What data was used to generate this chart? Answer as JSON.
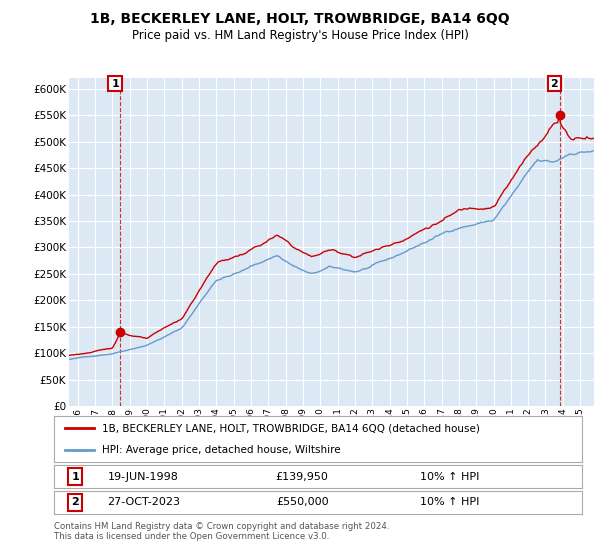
{
  "title": "1B, BECKERLEY LANE, HOLT, TROWBRIDGE, BA14 6QQ",
  "subtitle": "Price paid vs. HM Land Registry's House Price Index (HPI)",
  "ylim": [
    0,
    620000
  ],
  "yticks": [
    0,
    50000,
    100000,
    150000,
    200000,
    250000,
    300000,
    350000,
    400000,
    450000,
    500000,
    550000,
    600000
  ],
  "xlim_start": 1995.5,
  "xlim_end": 2025.8,
  "xtick_years": [
    1996,
    1997,
    1998,
    1999,
    2000,
    2001,
    2002,
    2003,
    2004,
    2005,
    2006,
    2007,
    2008,
    2009,
    2010,
    2011,
    2012,
    2013,
    2014,
    2015,
    2016,
    2017,
    2018,
    2019,
    2020,
    2021,
    2022,
    2023,
    2024,
    2025
  ],
  "background_color": "#ffffff",
  "chart_bg_color": "#dce9f5",
  "grid_color": "#ffffff",
  "hpi_color": "#6699cc",
  "price_color": "#cc0000",
  "sale1_date": "19-JUN-1998",
  "sale1_price": 139950,
  "sale1_hpi": "10% ↑ HPI",
  "sale1_year": 1998.46,
  "sale2_date": "27-OCT-2023",
  "sale2_price": 550000,
  "sale2_hpi": "10% ↑ HPI",
  "sale2_year": 2023.82,
  "legend_label_price": "1B, BECKERLEY LANE, HOLT, TROWBRIDGE, BA14 6QQ (detached house)",
  "legend_label_hpi": "HPI: Average price, detached house, Wiltshire",
  "footer": "Contains HM Land Registry data © Crown copyright and database right 2024.\nThis data is licensed under the Open Government Licence v3.0."
}
